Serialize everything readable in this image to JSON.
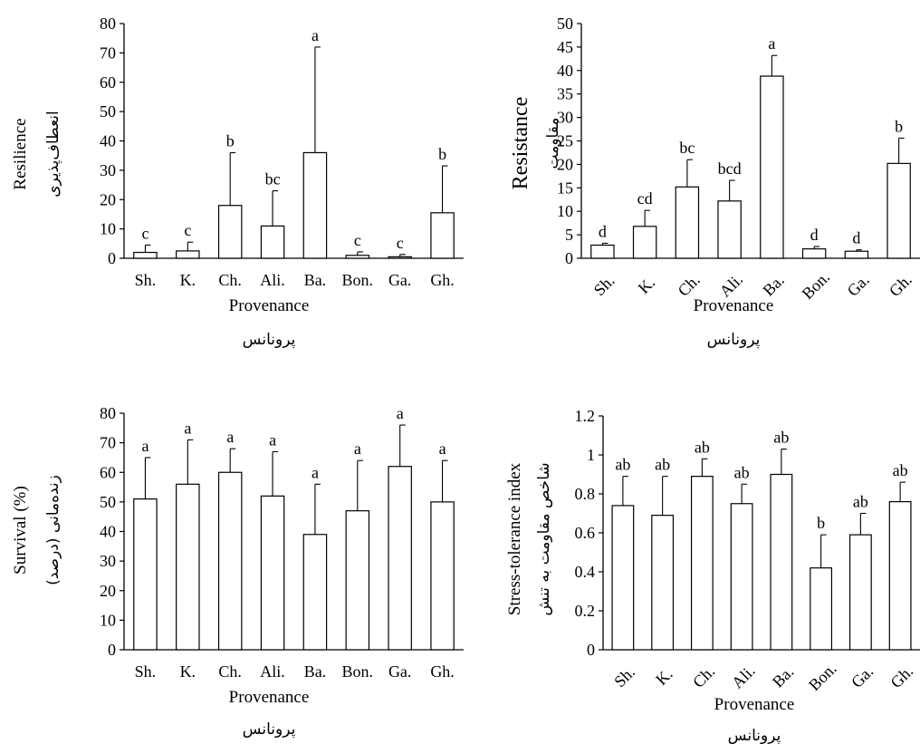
{
  "chart_data": [
    {
      "type": "bar",
      "categories": [
        "Sh.",
        "K.",
        "Ch.",
        "Ali.",
        "Ba.",
        "Bon.",
        "Ga.",
        "Gh."
      ],
      "values": [
        2,
        2.5,
        18,
        11,
        36,
        1,
        0.5,
        15.5
      ],
      "errors": [
        2.5,
        3,
        18,
        12,
        36,
        1.2,
        0.8,
        16
      ],
      "letters": [
        "c",
        "c",
        "b",
        "bc",
        "a",
        "c",
        "c",
        "b"
      ],
      "ylabel": "Resilience",
      "ylabel_fa": "انعطاف‌پذیری",
      "xlabel": "Provenance",
      "xlabel_fa": "پرونانس",
      "ylim": [
        0,
        80
      ],
      "yticks": [
        0,
        10,
        20,
        30,
        40,
        50,
        60,
        70,
        80
      ],
      "ytick_labels": [
        "0",
        "10",
        "20",
        "30",
        "40",
        "50",
        "60",
        "70",
        "80"
      ],
      "rotated_xticks": false,
      "grid": false
    },
    {
      "type": "bar",
      "categories": [
        "Sh.",
        "K.",
        "Ch.",
        "Ali.",
        "Ba.",
        "Bon.",
        "Ga.",
        "Gh."
      ],
      "values": [
        2.8,
        6.8,
        15.2,
        12.2,
        38.8,
        2,
        1.5,
        20.2
      ],
      "errors": [
        0.4,
        3.4,
        5.8,
        4.4,
        4.4,
        0.5,
        0.3,
        5.4
      ],
      "letters": [
        "d",
        "cd",
        "bc",
        "bcd",
        "a",
        "d",
        "d",
        "b"
      ],
      "ylabel": "Resistance",
      "ylabel_fa": "مقاومت",
      "xlabel": "Provenance",
      "xlabel_fa": "پرونانس",
      "ylim": [
        0,
        50
      ],
      "yticks": [
        0,
        5,
        10,
        15,
        20,
        25,
        30,
        35,
        40,
        45,
        50
      ],
      "ytick_labels": [
        "0",
        "5",
        "10",
        "15",
        "20",
        "25",
        "30",
        "35",
        "40",
        "45",
        "50"
      ],
      "rotated_xticks": true,
      "grid": false
    },
    {
      "type": "bar",
      "categories": [
        "Sh.",
        "K.",
        "Ch.",
        "Ali.",
        "Ba.",
        "Bon.",
        "Ga.",
        "Gh."
      ],
      "values": [
        51,
        56,
        60,
        52,
        39,
        47,
        62,
        50
      ],
      "errors": [
        14,
        15,
        8,
        15,
        17,
        17,
        14,
        14
      ],
      "letters": [
        "a",
        "a",
        "a",
        "a",
        "a",
        "a",
        "a",
        "a"
      ],
      "ylabel": "Survival (%)",
      "ylabel_fa": "زنده‌مانی (درصد)",
      "xlabel": "Provenance",
      "xlabel_fa": "پرونانس",
      "ylim": [
        0,
        80
      ],
      "yticks": [
        0,
        10,
        20,
        30,
        40,
        50,
        60,
        70,
        80
      ],
      "ytick_labels": [
        "0",
        "10",
        "20",
        "30",
        "40",
        "50",
        "60",
        "70",
        "80"
      ],
      "rotated_xticks": false,
      "grid": false
    },
    {
      "type": "bar",
      "categories": [
        "Sh.",
        "K.",
        "Ch.",
        "Ali.",
        "Ba.",
        "Bon.",
        "Ga.",
        "Gh."
      ],
      "values": [
        0.74,
        0.69,
        0.89,
        0.75,
        0.9,
        0.42,
        0.59,
        0.76
      ],
      "errors": [
        0.15,
        0.2,
        0.09,
        0.1,
        0.13,
        0.17,
        0.11,
        0.1
      ],
      "letters": [
        "ab",
        "ab",
        "ab",
        "ab",
        "ab",
        "b",
        "ab",
        "ab"
      ],
      "ylabel": "Stress-tolerance index",
      "ylabel_fa": "شاخص مقاومت به تنش",
      "xlabel": "Provenance",
      "xlabel_fa": "پرونانس",
      "ylim": [
        0,
        1.2
      ],
      "yticks": [
        0,
        0.2,
        0.4,
        0.6,
        0.8,
        1,
        1.2
      ],
      "ytick_labels": [
        "0",
        "0.2",
        "0.4",
        "0.6",
        "0.8",
        "1",
        "1.2"
      ],
      "rotated_xticks": true,
      "grid": false
    }
  ]
}
